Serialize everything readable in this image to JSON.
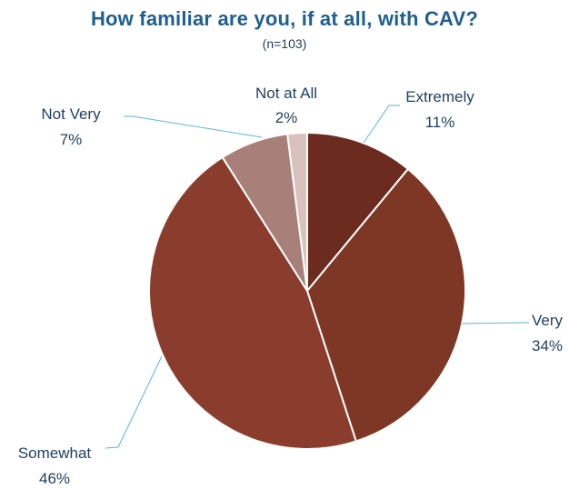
{
  "chart_data": {
    "type": "pie",
    "title": "How familiar are you, if at all, with CAV?",
    "subtitle": "(n=103)",
    "slices": [
      {
        "label": "Extremely",
        "value": 11,
        "value_label": "11%",
        "color": "#6b2b1e"
      },
      {
        "label": "Very",
        "value": 34,
        "value_label": "34%",
        "color": "#7e3725"
      },
      {
        "label": "Somewhat",
        "value": 46,
        "value_label": "46%",
        "color": "#8a3d2d"
      },
      {
        "label": "Not Very",
        "value": 7,
        "value_label": "7%",
        "color": "#a98079"
      },
      {
        "label": "Not at All",
        "value": 2,
        "value_label": "2%",
        "color": "#d9c1bd"
      }
    ],
    "start_angle_deg": 0,
    "direction": "clockwise",
    "leader_line_color": "#5bb7d6",
    "slice_border_color": "#ffffff"
  }
}
